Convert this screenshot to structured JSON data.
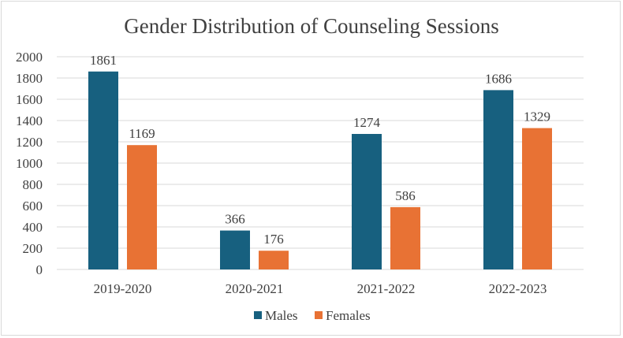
{
  "chart_data": {
    "type": "bar",
    "title": "Gender Distribution of Counseling Sessions",
    "xlabel": "",
    "ylabel": "",
    "categories": [
      "2019-2020",
      "2020-2021",
      "2021-2022",
      "2022-2023"
    ],
    "series": [
      {
        "name": "Males",
        "color": "#17607f",
        "values": [
          1861,
          366,
          1274,
          1686
        ]
      },
      {
        "name": "Females",
        "color": "#e87234",
        "values": [
          1169,
          176,
          586,
          1329
        ]
      }
    ],
    "ylim": [
      0,
      2000
    ],
    "yticks": [
      0,
      200,
      400,
      600,
      800,
      1000,
      1200,
      1400,
      1600,
      1800,
      2000
    ],
    "grid": true,
    "legend": "bottom",
    "data_labels": true
  }
}
